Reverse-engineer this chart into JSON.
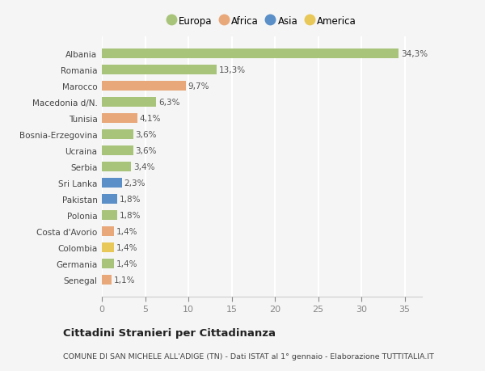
{
  "categories": [
    "Senegal",
    "Germania",
    "Colombia",
    "Costa d'Avorio",
    "Polonia",
    "Pakistan",
    "Sri Lanka",
    "Serbia",
    "Ucraina",
    "Bosnia-Erzegovina",
    "Tunisia",
    "Macedonia d/N.",
    "Marocco",
    "Romania",
    "Albania"
  ],
  "values": [
    1.1,
    1.4,
    1.4,
    1.4,
    1.8,
    1.8,
    2.3,
    3.4,
    3.6,
    3.6,
    4.1,
    6.3,
    9.7,
    13.3,
    34.3
  ],
  "labels": [
    "1,1%",
    "1,4%",
    "1,4%",
    "1,4%",
    "1,8%",
    "1,8%",
    "2,3%",
    "3,4%",
    "3,6%",
    "3,6%",
    "4,1%",
    "6,3%",
    "9,7%",
    "13,3%",
    "34,3%"
  ],
  "continents": [
    "Africa",
    "Europa",
    "America",
    "Africa",
    "Europa",
    "Asia",
    "Asia",
    "Europa",
    "Europa",
    "Europa",
    "Africa",
    "Europa",
    "Africa",
    "Europa",
    "Europa"
  ],
  "colors": {
    "Europa": "#a8c47a",
    "Africa": "#e8a87a",
    "Asia": "#5a8fc8",
    "America": "#e8c858"
  },
  "legend_order": [
    "Europa",
    "Africa",
    "Asia",
    "America"
  ],
  "title": "Cittadini Stranieri per Cittadinanza",
  "subtitle": "COMUNE DI SAN MICHELE ALL'ADIGE (TN) - Dati ISTAT al 1° gennaio - Elaborazione TUTTITALIA.IT",
  "xlim": [
    0,
    37
  ],
  "xticks": [
    0,
    5,
    10,
    15,
    20,
    25,
    30,
    35
  ],
  "background_color": "#f5f5f5",
  "grid_color": "#ffffff",
  "bar_height": 0.6
}
